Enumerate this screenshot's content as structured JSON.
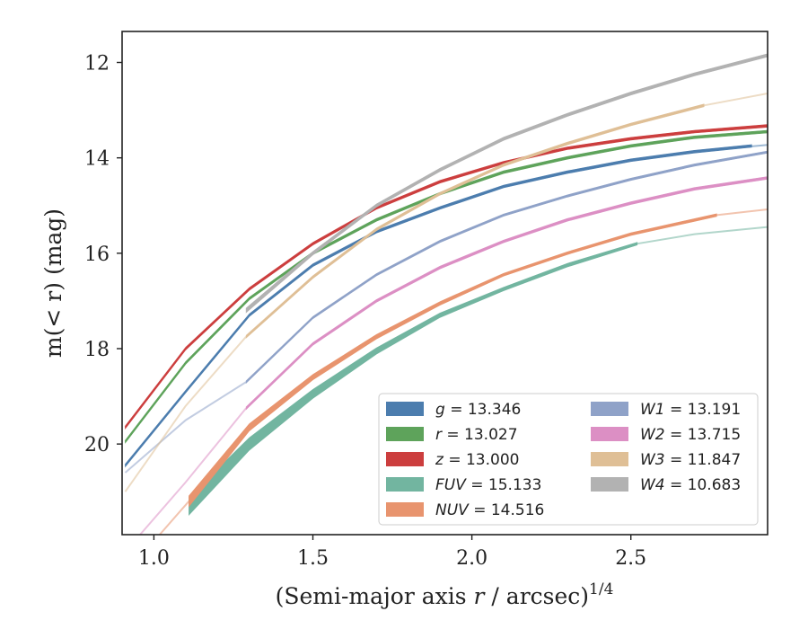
{
  "chart_data": {
    "type": "line",
    "xlabel": "(Semi-major axis r / arcsec)",
    "xlabel_var": "r",
    "xlabel_exp": "1/4",
    "ylabel": "m(< r) (mag)",
    "xlim": [
      0.9,
      2.93
    ],
    "ylim": [
      21.9,
      11.35
    ],
    "y_inverted": true,
    "xticks": [
      1.0,
      1.5,
      2.0,
      2.5
    ],
    "xtick_labels": [
      "1.0",
      "1.5",
      "2.0",
      "2.5"
    ],
    "yticks": [
      12,
      14,
      16,
      18,
      20
    ],
    "ytick_labels": [
      "12",
      "14",
      "16",
      "18",
      "20"
    ],
    "grid": false,
    "legend_location": "lower-right",
    "series": [
      {
        "name": "g",
        "legend": "= 13.346",
        "color": "#4c7dae",
        "thick": {
          "x": [
            0.91,
            1.1,
            1.3,
            1.5,
            1.7,
            1.9,
            2.1,
            2.3,
            2.5,
            2.7,
            2.88
          ],
          "y": [
            20.45,
            18.9,
            17.3,
            16.25,
            15.55,
            15.05,
            14.6,
            14.3,
            14.05,
            13.87,
            13.75
          ],
          "width": [
            3,
            3,
            3,
            3,
            3,
            3,
            3,
            3,
            3,
            3,
            3
          ]
        },
        "thin": {
          "x": [
            0.91,
            1.1,
            1.3,
            1.5,
            1.7,
            1.9,
            2.1,
            2.3,
            2.5,
            2.7,
            2.93
          ],
          "y": [
            20.45,
            18.9,
            17.3,
            16.25,
            15.55,
            15.05,
            14.6,
            14.3,
            14.05,
            13.87,
            13.73
          ]
        }
      },
      {
        "name": "r",
        "legend": "= 13.027",
        "color": "#5ea35b",
        "thick": {
          "x": [
            0.91,
            1.1,
            1.3,
            1.5,
            1.7,
            1.9,
            2.1,
            2.3,
            2.5,
            2.7,
            2.93
          ],
          "y": [
            19.95,
            18.3,
            16.95,
            16.0,
            15.3,
            14.75,
            14.3,
            14.0,
            13.75,
            13.57,
            13.45
          ],
          "width": [
            3,
            3,
            3,
            3,
            3,
            3,
            3,
            3,
            3,
            3,
            3
          ]
        },
        "thin": {
          "x": [
            0.91,
            1.1,
            1.3,
            1.5,
            1.7,
            1.9,
            2.1,
            2.3,
            2.5,
            2.7,
            2.93
          ],
          "y": [
            19.95,
            18.3,
            16.95,
            16.0,
            15.3,
            14.75,
            14.3,
            14.0,
            13.75,
            13.57,
            13.45
          ]
        }
      },
      {
        "name": "z",
        "legend": "= 13.000",
        "color": "#cc3e3e",
        "thick": {
          "x": [
            0.91,
            1.1,
            1.3,
            1.5,
            1.7,
            1.9,
            2.1,
            2.3,
            2.5,
            2.7,
            2.93
          ],
          "y": [
            19.65,
            18.0,
            16.75,
            15.8,
            15.05,
            14.5,
            14.1,
            13.8,
            13.6,
            13.45,
            13.33
          ],
          "width": [
            3,
            3,
            3,
            3,
            3,
            3,
            3,
            3,
            3,
            3,
            3
          ]
        },
        "thin": {
          "x": [
            0.91,
            1.1,
            1.3,
            1.5,
            1.7,
            1.9,
            2.1,
            2.3,
            2.5,
            2.7,
            2.93
          ],
          "y": [
            19.65,
            18.0,
            16.75,
            15.8,
            15.05,
            14.5,
            14.1,
            13.8,
            13.6,
            13.45,
            13.33
          ]
        }
      },
      {
        "name": "FUV",
        "legend": "= 15.133",
        "color": "#72b5a0",
        "thick": {
          "x": [
            1.11,
            1.3,
            1.5,
            1.7,
            1.9,
            2.1,
            2.3,
            2.52
          ],
          "y": [
            21.3,
            20.0,
            18.95,
            18.05,
            17.3,
            16.75,
            16.25,
            15.8
          ],
          "width": [
            20,
            14,
            10,
            7,
            5,
            4,
            4,
            3
          ]
        },
        "thin": {
          "x": [
            2.52,
            2.7,
            2.93
          ],
          "y": [
            15.8,
            15.6,
            15.45
          ]
        }
      },
      {
        "name": "NUV",
        "legend": "= 14.516",
        "color": "#e8946e",
        "thick": {
          "x": [
            1.11,
            1.3,
            1.5,
            1.7,
            1.9,
            2.1,
            2.3,
            2.5,
            2.77
          ],
          "y": [
            21.2,
            19.65,
            18.6,
            17.75,
            17.05,
            16.45,
            16.0,
            15.6,
            15.2
          ],
          "width": [
            12,
            8,
            6,
            5,
            4,
            3,
            3,
            3,
            3
          ]
        },
        "thin": {
          "x": [
            0.9,
            1.11
          ],
          "y": [
            22.8,
            21.2
          ],
          "x2": [
            2.77,
            2.93
          ],
          "y2": [
            15.2,
            15.08
          ]
        }
      },
      {
        "name": "W1",
        "legend": "= 13.191",
        "color": "#8fa2c8",
        "thick": {
          "x": [
            1.29,
            1.5,
            1.7,
            1.9,
            2.1,
            2.3,
            2.5,
            2.7,
            2.93
          ],
          "y": [
            18.7,
            17.35,
            16.45,
            15.75,
            15.2,
            14.8,
            14.45,
            14.15,
            13.88
          ],
          "width": [
            2.5,
            2.5,
            2.5,
            2.5,
            2.5,
            2.5,
            2.5,
            2.5,
            2.5
          ]
        },
        "thin": {
          "x": [
            0.91,
            1.1,
            1.29
          ],
          "y": [
            20.6,
            19.5,
            18.7
          ]
        }
      },
      {
        "name": "W2",
        "legend": "= 13.715",
        "color": "#dc8fc4",
        "thick": {
          "x": [
            1.29,
            1.5,
            1.7,
            1.9,
            2.1,
            2.3,
            2.5,
            2.7,
            2.93
          ],
          "y": [
            19.25,
            17.9,
            17.0,
            16.3,
            15.75,
            15.3,
            14.95,
            14.65,
            14.42
          ],
          "width": [
            3,
            3,
            3,
            3,
            3,
            3,
            3,
            3,
            3
          ]
        },
        "thin": {
          "x": [
            0.95,
            1.1,
            1.29
          ],
          "y": [
            21.95,
            20.8,
            19.25
          ]
        }
      },
      {
        "name": "W3",
        "legend": "= 11.847",
        "color": "#dfbf96",
        "thick": {
          "x": [
            1.29,
            1.5,
            1.7,
            1.9,
            2.1,
            2.3,
            2.5,
            2.73
          ],
          "y": [
            17.75,
            16.5,
            15.5,
            14.75,
            14.15,
            13.7,
            13.3,
            12.9
          ],
          "width": [
            3,
            3,
            3,
            3,
            3,
            3,
            3,
            3
          ]
        },
        "thin": {
          "x": [
            0.91,
            1.1,
            1.29
          ],
          "y": [
            21.0,
            19.2,
            17.75
          ],
          "x2": [
            2.73,
            2.93
          ],
          "y2": [
            12.9,
            12.65
          ]
        }
      },
      {
        "name": "W4",
        "legend": "= 10.683",
        "color": "#b2b2b2",
        "thick": {
          "x": [
            1.29,
            1.5,
            1.7,
            1.9,
            2.1,
            2.3,
            2.5,
            2.7,
            2.93
          ],
          "y": [
            17.2,
            16.0,
            15.0,
            14.25,
            13.6,
            13.1,
            12.65,
            12.25,
            11.85
          ],
          "width": [
            5,
            4,
            3.5,
            3.5,
            3.5,
            3.5,
            3.5,
            3.5,
            3.5
          ]
        },
        "thin": {
          "x": [],
          "y": []
        }
      }
    ]
  }
}
